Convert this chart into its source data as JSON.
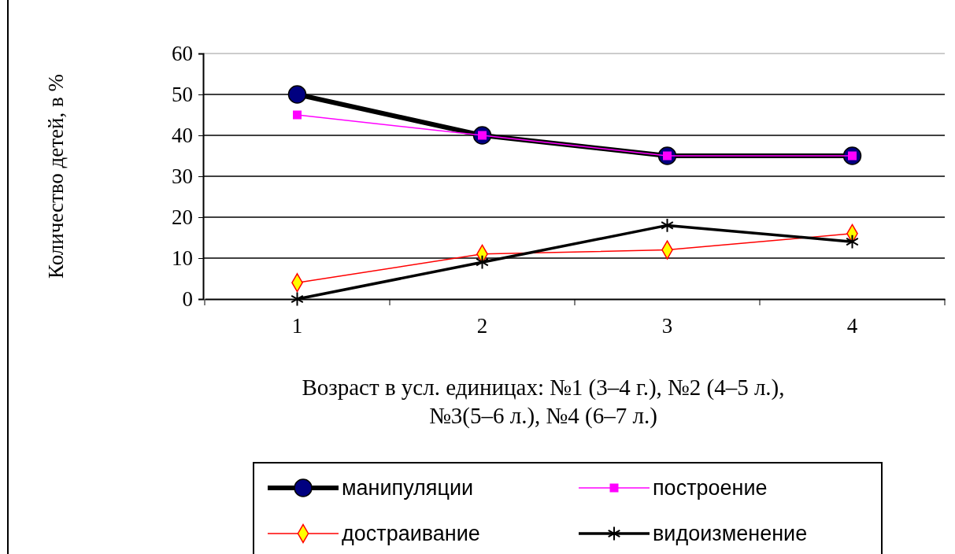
{
  "chart_data": {
    "type": "line",
    "xlabel": "Возраст в усл. единицах: №1 (3–4 г.), №2 (4–5 л.),\n№3(5–6 л.), №4 (6–7 л.)",
    "ylabel": "Количество детей, в %",
    "categories": [
      "1",
      "2",
      "3",
      "4"
    ],
    "ylim": [
      0,
      60
    ],
    "yticks": [
      0,
      10,
      20,
      30,
      40,
      50,
      60
    ],
    "grid": "y",
    "legend": "bottom",
    "series": [
      {
        "name": "манипуляции",
        "color": "#000000",
        "marker": "circle",
        "values": [
          50,
          40,
          35,
          35
        ]
      },
      {
        "name": "построение",
        "color": "#ff00ff",
        "marker": "square",
        "values": [
          45,
          40,
          35,
          35
        ]
      },
      {
        "name": "достраивание",
        "color": "#ff0000",
        "marker": "diamond",
        "values": [
          4,
          11,
          12,
          16
        ]
      },
      {
        "name": "видоизменение",
        "color": "#000000",
        "marker": "cross",
        "values": [
          0,
          9,
          18,
          14
        ]
      }
    ]
  }
}
